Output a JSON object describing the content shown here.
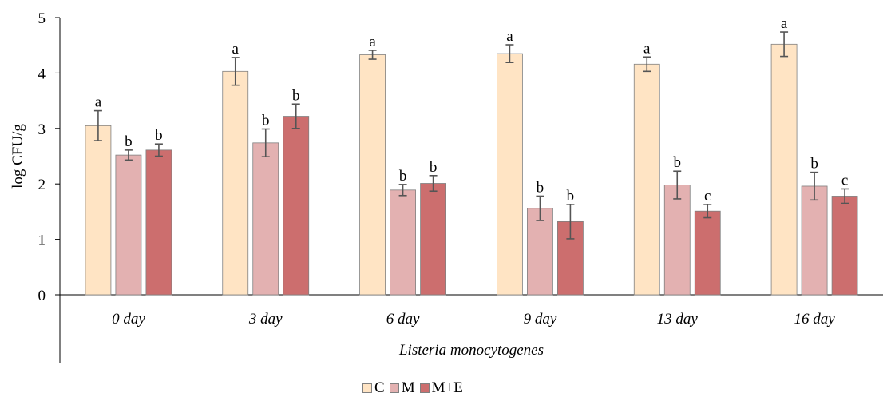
{
  "chart_data": {
    "type": "bar",
    "title": "",
    "xlabel": "Listeria monocytogenes",
    "ylabel": "log CFU/g",
    "ylim": [
      0,
      5
    ],
    "yticks": [
      "0",
      "1",
      "2",
      "3",
      "4",
      "5"
    ],
    "grid": false,
    "legend_position": "bottom",
    "categories": [
      "0 day",
      "3 day",
      "6 day",
      "9 day",
      "13 day",
      "16 day"
    ],
    "series": [
      {
        "name": "C",
        "color": "#FFE4C4",
        "values": [
          3.05,
          4.03,
          4.33,
          4.35,
          4.16,
          4.52
        ],
        "errors": [
          0.27,
          0.25,
          0.08,
          0.16,
          0.13,
          0.22
        ],
        "letters": [
          "a",
          "a",
          "a",
          "a",
          "a",
          "a"
        ]
      },
      {
        "name": "M",
        "color": "#E3B1B1",
        "values": [
          2.52,
          2.74,
          1.89,
          1.56,
          1.98,
          1.96
        ],
        "errors": [
          0.09,
          0.25,
          0.1,
          0.22,
          0.25,
          0.25
        ],
        "letters": [
          "b",
          "b",
          "b",
          "b",
          "b",
          "b"
        ]
      },
      {
        "name": "M+E",
        "color": "#CC6E6E",
        "values": [
          2.61,
          3.22,
          2.01,
          1.32,
          1.51,
          1.78
        ],
        "errors": [
          0.11,
          0.22,
          0.14,
          0.31,
          0.12,
          0.13
        ],
        "letters": [
          "b",
          "b",
          "b",
          "b",
          "c",
          "c"
        ]
      }
    ]
  }
}
